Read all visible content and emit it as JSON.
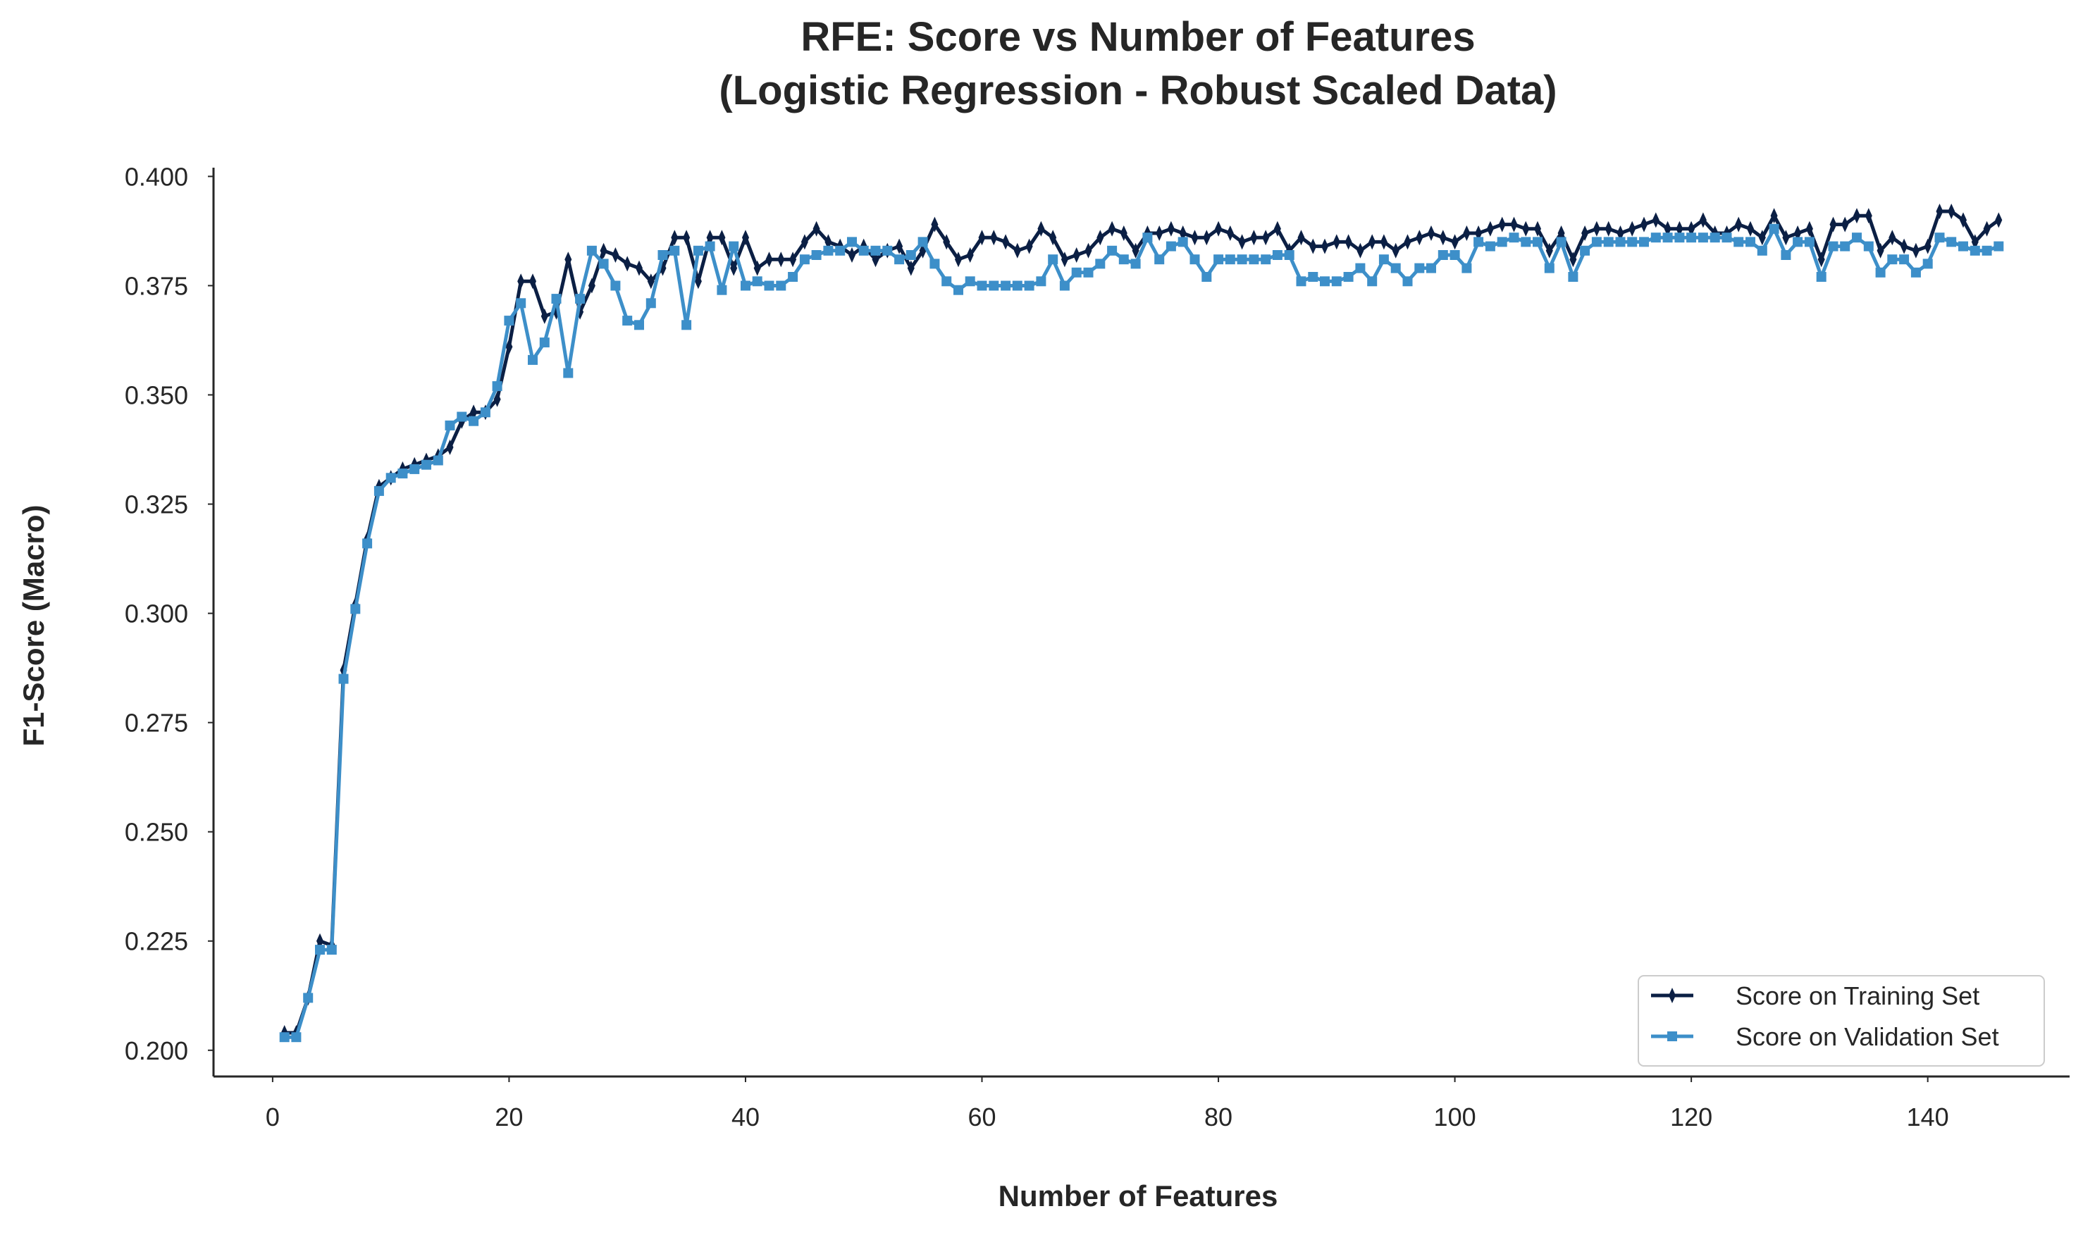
{
  "chart_data": {
    "type": "line",
    "title": [
      "RFE: Score vs Number of Features",
      "(Logistic Regression - Robust Scaled Data)"
    ],
    "xlabel": "Number of Features",
    "ylabel": "F1-Score (Macro)",
    "xlim": [
      -5,
      152
    ],
    "ylim": [
      0.194,
      0.402
    ],
    "xticks": [
      0,
      20,
      40,
      60,
      80,
      100,
      120,
      140
    ],
    "xtick_labels": [
      "0",
      "20",
      "40",
      "60",
      "80",
      "100",
      "120",
      "140"
    ],
    "yticks": [
      0.2,
      0.225,
      0.25,
      0.275,
      0.3,
      0.325,
      0.35,
      0.375,
      0.4
    ],
    "ytick_labels": [
      "0.200",
      "0.225",
      "0.250",
      "0.275",
      "0.300",
      "0.325",
      "0.350",
      "0.375",
      "0.400"
    ],
    "grid": false,
    "legend_position": "lower-right",
    "series": [
      {
        "name": "Score on Training Set",
        "color": "#0b1f44",
        "marker": "thin-diamond",
        "x_start": 1,
        "values": [
          0.204,
          0.204,
          0.212,
          0.225,
          0.224,
          0.287,
          0.302,
          0.317,
          0.329,
          0.331,
          0.333,
          0.334,
          0.335,
          0.336,
          0.338,
          0.344,
          0.346,
          0.346,
          0.349,
          0.361,
          0.376,
          0.376,
          0.368,
          0.369,
          0.381,
          0.369,
          0.375,
          0.383,
          0.382,
          0.38,
          0.379,
          0.376,
          0.379,
          0.386,
          0.386,
          0.376,
          0.386,
          0.386,
          0.379,
          0.386,
          0.379,
          0.381,
          0.381,
          0.381,
          0.385,
          0.388,
          0.385,
          0.384,
          0.382,
          0.384,
          0.381,
          0.383,
          0.384,
          0.379,
          0.383,
          0.389,
          0.385,
          0.381,
          0.382,
          0.386,
          0.386,
          0.385,
          0.383,
          0.384,
          0.388,
          0.386,
          0.381,
          0.382,
          0.383,
          0.386,
          0.388,
          0.387,
          0.383,
          0.387,
          0.387,
          0.388,
          0.387,
          0.386,
          0.386,
          0.388,
          0.387,
          0.385,
          0.386,
          0.386,
          0.388,
          0.383,
          0.386,
          0.384,
          0.384,
          0.385,
          0.385,
          0.383,
          0.385,
          0.385,
          0.383,
          0.385,
          0.386,
          0.387,
          0.386,
          0.385,
          0.387,
          0.387,
          0.388,
          0.389,
          0.389,
          0.388,
          0.388,
          0.383,
          0.387,
          0.381,
          0.387,
          0.388,
          0.388,
          0.387,
          0.388,
          0.389,
          0.39,
          0.388,
          0.388,
          0.388,
          0.39,
          0.387,
          0.387,
          0.389,
          0.388,
          0.386,
          0.391,
          0.386,
          0.387,
          0.388,
          0.381,
          0.389,
          0.389,
          0.391,
          0.391,
          0.383,
          0.386,
          0.384,
          0.383,
          0.384,
          0.392,
          0.392,
          0.39,
          0.385,
          0.388,
          0.39
        ]
      },
      {
        "name": "Score on Validation Set",
        "color": "#3d8fc9",
        "marker": "square",
        "x_start": 1,
        "values": [
          0.203,
          0.203,
          0.212,
          0.223,
          0.223,
          0.285,
          0.301,
          0.316,
          0.328,
          0.331,
          0.332,
          0.333,
          0.334,
          0.335,
          0.343,
          0.345,
          0.344,
          0.346,
          0.352,
          0.367,
          0.371,
          0.358,
          0.362,
          0.372,
          0.355,
          0.372,
          0.383,
          0.38,
          0.375,
          0.367,
          0.366,
          0.371,
          0.382,
          0.383,
          0.366,
          0.383,
          0.384,
          0.374,
          0.384,
          0.375,
          0.376,
          0.375,
          0.375,
          0.377,
          0.381,
          0.382,
          0.383,
          0.383,
          0.385,
          0.383,
          0.383,
          0.383,
          0.381,
          0.382,
          0.385,
          0.38,
          0.376,
          0.374,
          0.376,
          0.375,
          0.375,
          0.375,
          0.375,
          0.375,
          0.376,
          0.381,
          0.375,
          0.378,
          0.378,
          0.38,
          0.383,
          0.381,
          0.38,
          0.386,
          0.381,
          0.384,
          0.385,
          0.381,
          0.377,
          0.381,
          0.381,
          0.381,
          0.381,
          0.381,
          0.382,
          0.382,
          0.376,
          0.377,
          0.376,
          0.376,
          0.377,
          0.379,
          0.376,
          0.381,
          0.379,
          0.376,
          0.379,
          0.379,
          0.382,
          0.382,
          0.379,
          0.385,
          0.384,
          0.385,
          0.386,
          0.385,
          0.385,
          0.379,
          0.385,
          0.377,
          0.383,
          0.385,
          0.385,
          0.385,
          0.385,
          0.385,
          0.386,
          0.386,
          0.386,
          0.386,
          0.386,
          0.386,
          0.386,
          0.385,
          0.385,
          0.383,
          0.388,
          0.382,
          0.385,
          0.385,
          0.377,
          0.384,
          0.384,
          0.386,
          0.384,
          0.378,
          0.381,
          0.381,
          0.378,
          0.38,
          0.386,
          0.385,
          0.384,
          0.383,
          0.383,
          0.384
        ]
      }
    ]
  }
}
